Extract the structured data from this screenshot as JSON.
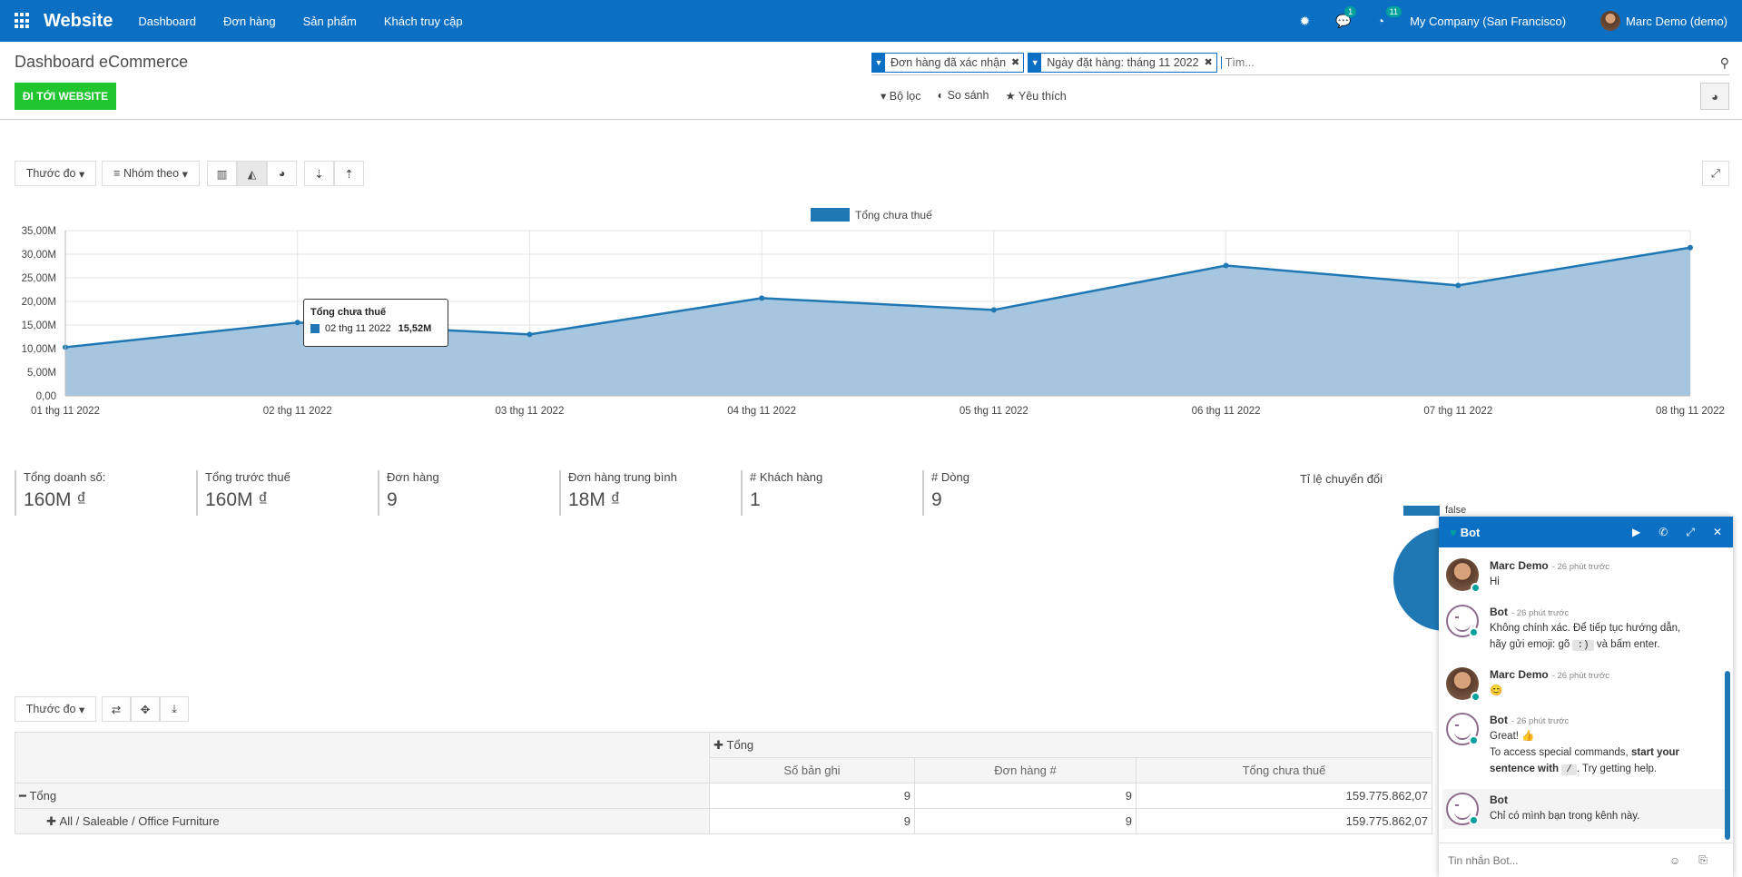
{
  "navbar": {
    "brand": "Website",
    "items": [
      "Dashboard",
      "Đơn hàng",
      "Sản phẩm",
      "Khách truy cập"
    ],
    "messages_badge": "1",
    "activity_badge": "11",
    "company": "My Company (San Francisco)",
    "user": "Marc Demo (demo)"
  },
  "control": {
    "title": "Dashboard eCommerce",
    "website_button": "ĐI TỚI WEBSITE",
    "facets": [
      "Đơn hàng đã xác nhận",
      "Ngày đặt hàng: tháng 11 2022"
    ],
    "search_placeholder": "Tìm...",
    "filters_label": "Bộ lọc",
    "compare_label": "So sánh",
    "favorites_label": "Yêu thích"
  },
  "graph_toolbar": {
    "measure_label": "Thước đo",
    "group_label": "Nhóm theo"
  },
  "chart_data": {
    "type": "area",
    "series": [
      {
        "name": "Tổng chưa thuế",
        "values": [
          10.3,
          15.52,
          13.0,
          20.7,
          18.2,
          27.6,
          23.4,
          31.4
        ]
      }
    ],
    "categories": [
      "01 thg 11 2022",
      "02 thg 11 2022",
      "03 thg 11 2022",
      "04 thg 11 2022",
      "05 thg 11 2022",
      "06 thg 11 2022",
      "07 thg 11 2022",
      "08 thg 11 2022"
    ],
    "y_ticks": [
      "0,00",
      "5,00M",
      "10,00M",
      "15,00M",
      "20,00M",
      "25,00M",
      "30,00M",
      "35,00M"
    ],
    "ylim": [
      0,
      35
    ],
    "y_unit": "M",
    "grid": true,
    "legend": "top-center",
    "color": "#1f77b4",
    "fill_color": "#a6c6e0"
  },
  "tooltip": {
    "title": "Tổng chưa thuế",
    "label": "02 thg 11 2022",
    "value": "15,52M"
  },
  "kpis": [
    {
      "label": "Tổng doanh số:",
      "value": "160M ₫"
    },
    {
      "label": "Tổng trước thuế",
      "value": "160M ₫"
    },
    {
      "label": "Đơn hàng",
      "value": "9"
    },
    {
      "label": "Đơn hàng trung bình",
      "value": "18M ₫"
    },
    {
      "label": "# Khách hàng",
      "value": "1"
    },
    {
      "label": "# Dòng",
      "value": "9"
    }
  ],
  "pie": {
    "title": "Tỉ lệ chuyển đổi",
    "legend": "false"
  },
  "pivot": {
    "measure_label": "Thước đo",
    "col_header": "Tổng",
    "measures": [
      "Số bản ghi",
      "Đơn hàng #",
      "Tổng chưa thuế"
    ],
    "rows": [
      {
        "label": "Tổng",
        "values": [
          "9",
          "9",
          "159.775.862,07"
        ]
      },
      {
        "label": "All / Saleable / Office Furniture",
        "values": [
          "9",
          "9",
          "159.775.862,07"
        ]
      }
    ]
  },
  "chat": {
    "title": "Bot",
    "messages": [
      {
        "author": "Marc Demo",
        "time": "- 26 phút trước",
        "body": "Hi"
      },
      {
        "author": "Bot",
        "time": "- 26 phút trước",
        "body1": "Không chính xác. Để tiếp tục hướng dẫn,",
        "body2a": "hãy gửi emoji: gõ",
        "code": ":)",
        "body2b": "và bấm enter."
      },
      {
        "author": "Marc Demo",
        "time": "- 26 phút trước",
        "body": "😊"
      },
      {
        "author": "Bot",
        "time": "- 26 phút trước",
        "line1": "Great! 👍",
        "line2a": "To access special commands,",
        "line2b": "start your",
        "line3a": "sentence with",
        "code": "/",
        "line3b": ". Try getting help."
      },
      {
        "author": "Bot",
        "body": "Chỉ có mình bạn trong kênh này."
      }
    ],
    "input_placeholder": "Tin nhắn Bot..."
  }
}
